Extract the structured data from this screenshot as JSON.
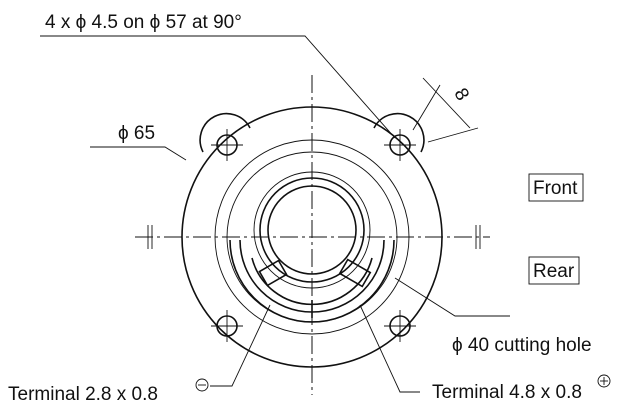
{
  "labels": {
    "hole_spec": "4 x ϕ 4.5 on ϕ 57 at 90°",
    "outer_diameter": "ϕ 65",
    "dimension": "8",
    "front": "Front",
    "rear": "Rear",
    "cutting_hole": "ϕ 40 cutting hole",
    "terminal_negative": "Terminal 2.8 x 0.8",
    "terminal_positive": "Terminal 4.8 x 0.8"
  }
}
